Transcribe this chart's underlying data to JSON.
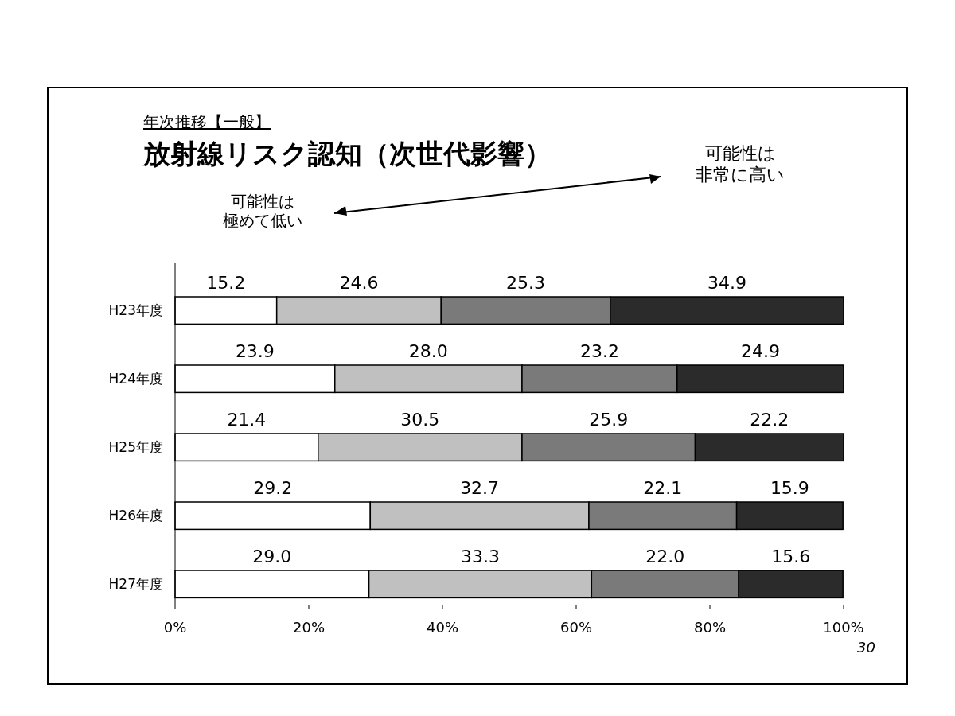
{
  "chart_data": {
    "type": "bar",
    "orientation": "horizontal",
    "stacked": true,
    "subtitle": "年次推移【一般】",
    "title": "放射線リスク認知（次世代影響）",
    "annotations": [
      "可能性は",
      "極めて低い",
      "可能性は",
      "非常に高い",
      "30"
    ],
    "categories": [
      "H23年度",
      "H24年度",
      "H25年度",
      "H26年度",
      "H27年度"
    ],
    "series": [
      {
        "color": "#ffffff",
        "values": [
          15.2,
          23.9,
          21.4,
          29.2,
          29.0
        ],
        "value_labels": [
          "15.2",
          "23.9",
          "21.4",
          "29.2",
          "29.0"
        ]
      },
      {
        "color": "#c0c0c0",
        "values": [
          24.6,
          28.0,
          30.5,
          32.7,
          33.3
        ],
        "value_labels": [
          "24.6",
          "28.0",
          "30.5",
          "32.7",
          "33.3"
        ]
      },
      {
        "color": "#7a7a7a",
        "values": [
          25.3,
          23.2,
          25.9,
          22.1,
          22.0
        ],
        "value_labels": [
          "25.3",
          "23.2",
          "25.9",
          "22.1",
          "22.0"
        ]
      },
      {
        "color": "#2b2b2b",
        "values": [
          34.9,
          24.9,
          22.2,
          15.9,
          15.6
        ],
        "value_labels": [
          "34.9",
          "24.9",
          "22.2",
          "15.9",
          "15.6"
        ]
      }
    ],
    "xlim": [
      0,
      100
    ],
    "xticks": [
      {
        "value": 0,
        "label": "0%"
      },
      {
        "value": 20,
        "label": "20%"
      },
      {
        "value": 40,
        "label": "40%"
      },
      {
        "value": 60,
        "label": "60%"
      },
      {
        "value": 80,
        "label": "80%"
      },
      {
        "value": 100,
        "label": "100%"
      }
    ]
  }
}
